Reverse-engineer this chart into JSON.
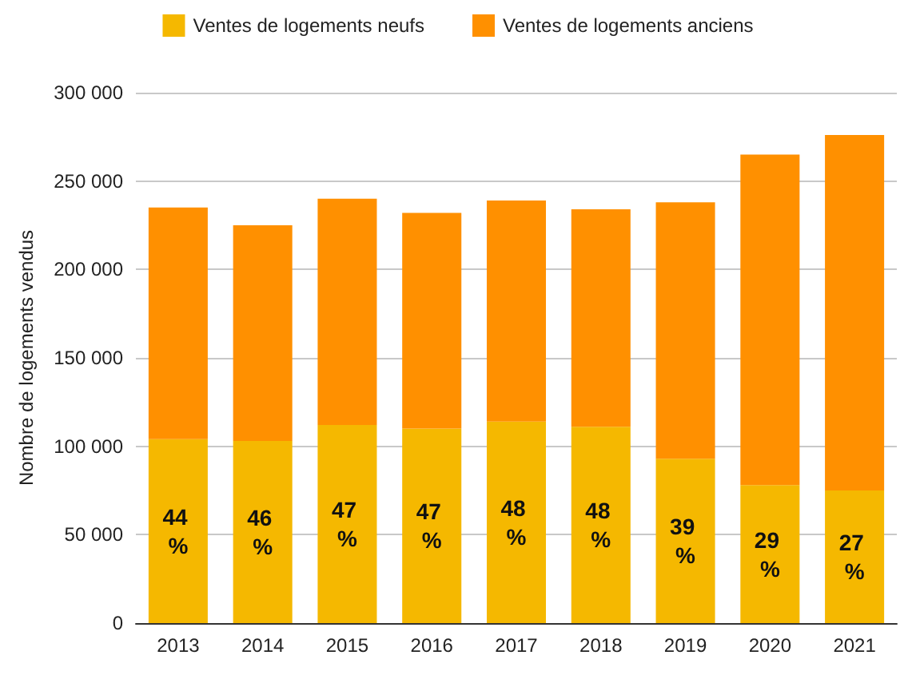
{
  "chart_data": {
    "type": "bar",
    "stacked": true,
    "ylabel": "Nombre de logements vendus",
    "categories": [
      "2013",
      "2014",
      "2015",
      "2016",
      "2017",
      "2018",
      "2019",
      "2020",
      "2021"
    ],
    "series": [
      {
        "name": "Ventes de logements neufs",
        "color": "#f5b800",
        "values": [
          104000,
          103000,
          112000,
          110000,
          114000,
          111000,
          93000,
          78000,
          75000
        ]
      },
      {
        "name": "Ventes de logements anciens",
        "color": "#ff9000",
        "values": [
          131000,
          122000,
          128000,
          122000,
          125000,
          123000,
          145000,
          187000,
          201000
        ]
      }
    ],
    "annotations": [
      "44 %",
      "46 %",
      "47 %",
      "47 %",
      "48 %",
      "48 %",
      "39 %",
      "29 %",
      "27 %"
    ],
    "ylim": [
      0,
      300000
    ],
    "yticks": [
      {
        "value": 0,
        "label": "0"
      },
      {
        "value": 50000,
        "label": "50 000"
      },
      {
        "value": 100000,
        "label": "100 000"
      },
      {
        "value": 150000,
        "label": "150 000"
      },
      {
        "value": 200000,
        "label": "200 000"
      },
      {
        "value": 250000,
        "label": "250 000"
      },
      {
        "value": 300000,
        "label": "300 000"
      }
    ],
    "grid": "y",
    "legend": "top"
  }
}
